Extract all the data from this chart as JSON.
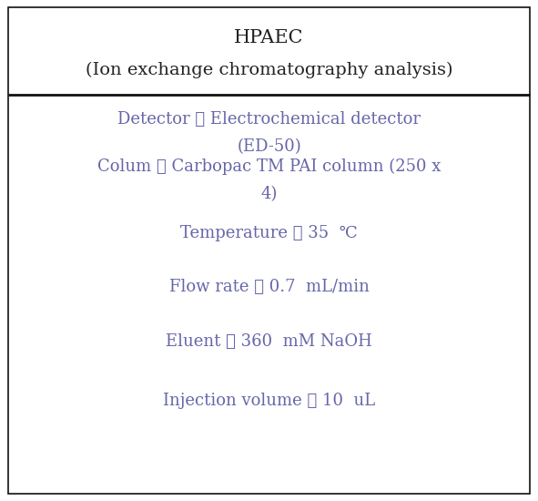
{
  "title_line1": "HPAEC",
  "title_line2": "(Ion exchange chromatography analysis)",
  "rows": [
    [
      "Detector ： Electrochemical detector",
      "(ED-50)"
    ],
    [
      "Colum ： Carbopac TM PAI column (250 x",
      "4)"
    ],
    [
      "Temperature ： 35  ℃"
    ],
    [
      "Flow rate ： 0.7  mL/min"
    ],
    [
      "Eluent ： 360  mM NaOH"
    ],
    [
      "Injection volume ： 10  uL"
    ]
  ],
  "text_color": "#6666aa",
  "title_color": "#222222",
  "background_color": "#ffffff",
  "border_color": "#111111",
  "separator_color": "#111111",
  "title_fontsize": 15,
  "body_fontsize": 13,
  "fig_width": 5.91,
  "fig_height": 5.5,
  "dpi": 100
}
